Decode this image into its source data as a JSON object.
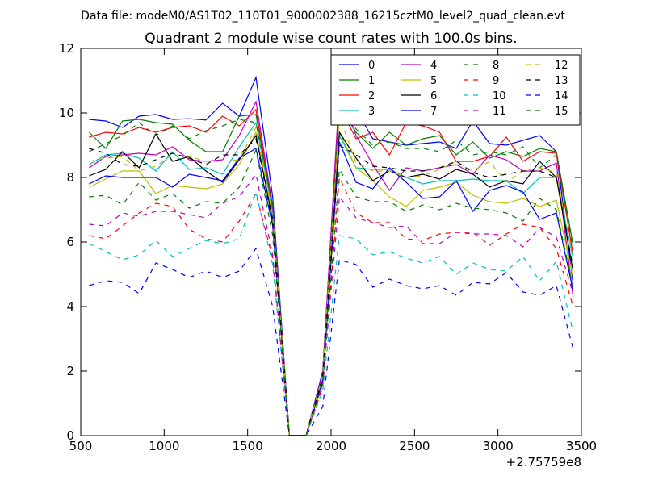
{
  "chart_data": {
    "type": "line",
    "suptitle": "Data file: modeM0/AS1T02_110T01_9000002388_16215cztM0_level2_quad_clean.evt",
    "title": "Quadrant 2 module wise count rates with 100.0s bins.",
    "xlabel": "",
    "ylabel": "",
    "x_offset_label": "+2.75759e8",
    "xlim": [
      500,
      3500
    ],
    "ylim": [
      0,
      12
    ],
    "xticks": [
      500,
      1000,
      1500,
      2000,
      2500,
      3000,
      3500
    ],
    "yticks": [
      0,
      2,
      4,
      6,
      8,
      10,
      12
    ],
    "x": [
      550,
      650,
      750,
      850,
      950,
      1050,
      1150,
      1250,
      1350,
      1450,
      1550,
      1650,
      1750,
      1850,
      1950,
      2050,
      2150,
      2250,
      2350,
      2450,
      2550,
      2650,
      2750,
      2850,
      2950,
      3050,
      3150,
      3250,
      3350,
      3450
    ],
    "legend_position": "top-right",
    "legend_columns": 4,
    "series": [
      {
        "name": "0",
        "color": "#0000ff",
        "style": "solid",
        "values": [
          9.8,
          9.75,
          9.55,
          9.9,
          9.95,
          9.8,
          9.82,
          9.78,
          10.3,
          9.9,
          11.1,
          7.4,
          0.0,
          0.0,
          2.0,
          10.5,
          10.1,
          9.2,
          9.1,
          9.0,
          9.05,
          9.1,
          8.9,
          9.75,
          9.05,
          9.0,
          9.15,
          9.3,
          8.8,
          4.7
        ]
      },
      {
        "name": "1",
        "color": "#008000",
        "style": "solid",
        "values": [
          9.4,
          8.9,
          9.75,
          9.8,
          9.7,
          9.65,
          9.15,
          8.8,
          8.8,
          9.9,
          9.95,
          7.0,
          0.0,
          0.0,
          1.9,
          10.2,
          9.4,
          8.9,
          9.4,
          9.0,
          9.2,
          9.3,
          8.7,
          9.1,
          8.6,
          8.8,
          8.65,
          8.9,
          8.8,
          5.9
        ]
      },
      {
        "name": "2",
        "color": "#ff0000",
        "style": "solid",
        "values": [
          9.25,
          9.4,
          9.35,
          9.55,
          9.4,
          9.55,
          9.6,
          9.4,
          9.9,
          9.6,
          10.1,
          7.0,
          0.0,
          0.0,
          1.85,
          10.2,
          9.2,
          9.4,
          8.7,
          9.7,
          9.6,
          9.4,
          8.5,
          8.5,
          8.65,
          9.25,
          8.5,
          8.8,
          8.75,
          5.6
        ]
      },
      {
        "name": "3",
        "color": "#00bfbf",
        "style": "solid",
        "values": [
          8.4,
          8.7,
          8.75,
          8.6,
          8.2,
          8.8,
          8.25,
          8.3,
          8.1,
          8.95,
          9.7,
          6.9,
          0.0,
          0.0,
          1.8,
          9.3,
          8.3,
          8.25,
          8.25,
          8.0,
          7.8,
          7.9,
          7.9,
          7.95,
          7.9,
          7.9,
          7.5,
          8.0,
          8.0,
          5.5
        ]
      },
      {
        "name": "4",
        "color": "#bf00bf",
        "style": "solid",
        "values": [
          8.3,
          8.65,
          8.7,
          8.75,
          8.7,
          8.95,
          8.55,
          8.5,
          8.55,
          9.3,
          10.35,
          7.1,
          0.0,
          0.0,
          1.95,
          10.7,
          9.3,
          8.4,
          7.6,
          8.3,
          8.2,
          8.3,
          8.4,
          8.1,
          8.7,
          8.55,
          8.2,
          8.2,
          8.45,
          4.3
        ]
      },
      {
        "name": "5",
        "color": "#bfbf00",
        "style": "solid",
        "values": [
          7.7,
          7.95,
          8.2,
          8.2,
          7.5,
          7.75,
          7.7,
          7.65,
          7.8,
          8.4,
          9.4,
          6.6,
          0.0,
          0.0,
          1.75,
          9.4,
          8.3,
          7.9,
          7.4,
          7.1,
          7.6,
          7.7,
          7.85,
          7.45,
          7.25,
          7.2,
          7.35,
          7.1,
          7.3,
          4.9
        ]
      },
      {
        "name": "6",
        "color": "#000000",
        "style": "solid",
        "values": [
          8.05,
          8.25,
          8.8,
          8.3,
          9.35,
          8.5,
          8.65,
          8.2,
          7.85,
          8.55,
          9.3,
          6.7,
          0.0,
          0.0,
          1.7,
          9.4,
          8.6,
          7.9,
          8.2,
          8.0,
          8.1,
          7.95,
          8.25,
          8.1,
          7.7,
          7.9,
          7.8,
          8.5,
          8.0,
          5.1
        ]
      },
      {
        "name": "7",
        "color": "#0000ff",
        "style": "solid",
        "values": [
          7.8,
          8.05,
          8.0,
          8.0,
          8.0,
          7.7,
          8.1,
          8.0,
          7.9,
          8.6,
          8.9,
          6.5,
          0.0,
          0.0,
          1.7,
          9.1,
          7.85,
          7.65,
          8.3,
          7.85,
          7.35,
          7.4,
          7.9,
          6.95,
          7.6,
          7.75,
          7.55,
          6.7,
          6.9,
          4.5
        ]
      },
      {
        "name": "8",
        "color": "#008000",
        "style": "dashed",
        "values": [
          8.8,
          9.05,
          9.3,
          9.7,
          9.3,
          9.6,
          9.2,
          9.45,
          9.6,
          9.8,
          9.7,
          7.2,
          0.0,
          0.0,
          1.9,
          10.2,
          9.5,
          9.0,
          9.1,
          8.9,
          8.9,
          8.8,
          9.15,
          8.7,
          8.8,
          8.7,
          8.95,
          8.3,
          8.7,
          5.8
        ]
      },
      {
        "name": "9",
        "color": "#ff0000",
        "style": "dashed",
        "values": [
          6.2,
          6.1,
          6.5,
          6.9,
          7.2,
          7.1,
          6.4,
          6.1,
          6.0,
          6.65,
          7.5,
          5.5,
          0.0,
          0.0,
          1.5,
          8.0,
          6.9,
          6.6,
          6.6,
          6.1,
          6.05,
          6.25,
          6.3,
          6.3,
          5.9,
          6.25,
          6.55,
          6.45,
          5.8,
          4.0
        ]
      },
      {
        "name": "10",
        "color": "#00bfbf",
        "style": "dashed",
        "values": [
          5.95,
          5.7,
          5.45,
          5.6,
          6.05,
          5.55,
          5.8,
          6.05,
          5.95,
          6.1,
          7.55,
          5.3,
          0.0,
          0.0,
          1.4,
          6.2,
          6.1,
          5.6,
          5.7,
          5.5,
          5.35,
          5.55,
          5.0,
          5.35,
          5.15,
          5.1,
          5.55,
          4.8,
          5.4,
          3.2
        ]
      },
      {
        "name": "11",
        "color": "#bf00bf",
        "style": "dashed",
        "values": [
          6.55,
          6.5,
          6.9,
          6.8,
          6.95,
          6.95,
          6.85,
          6.75,
          7.2,
          7.4,
          8.1,
          5.6,
          0.0,
          0.0,
          1.6,
          7.4,
          6.75,
          6.6,
          6.45,
          6.5,
          5.95,
          5.95,
          6.3,
          6.25,
          6.25,
          6.2,
          5.85,
          6.45,
          6.15,
          4.4
        ]
      },
      {
        "name": "12",
        "color": "#bfbf00",
        "style": "dashed",
        "values": [
          8.5,
          8.6,
          8.65,
          8.2,
          8.35,
          8.7,
          8.65,
          8.5,
          8.5,
          8.55,
          9.55,
          6.8,
          0.0,
          0.0,
          1.85,
          9.9,
          8.45,
          8.2,
          8.2,
          8.0,
          8.05,
          8.25,
          8.5,
          8.2,
          8.5,
          7.85,
          8.2,
          8.3,
          8.15,
          5.4
        ]
      },
      {
        "name": "13",
        "color": "#000000",
        "style": "dashed",
        "values": [
          8.9,
          8.75,
          8.4,
          8.35,
          8.55,
          8.75,
          8.6,
          8.4,
          8.7,
          8.7,
          9.2,
          6.6,
          0.0,
          0.0,
          1.8,
          9.0,
          8.7,
          8.35,
          8.3,
          8.2,
          8.2,
          8.3,
          8.5,
          8.15,
          8.0,
          8.1,
          8.2,
          8.2,
          8.0,
          5.2
        ]
      },
      {
        "name": "14",
        "color": "#0000ff",
        "style": "dashed",
        "values": [
          4.65,
          4.8,
          4.75,
          4.4,
          5.35,
          5.15,
          4.9,
          5.1,
          4.9,
          5.1,
          5.8,
          4.0,
          0.0,
          0.0,
          0.9,
          5.45,
          5.3,
          4.6,
          4.85,
          4.65,
          4.55,
          4.65,
          4.35,
          4.75,
          4.7,
          5.05,
          4.45,
          4.35,
          4.65,
          2.7
        ]
      },
      {
        "name": "15",
        "color": "#008000",
        "style": "dashed",
        "values": [
          7.4,
          7.45,
          7.15,
          7.85,
          7.3,
          7.5,
          7.05,
          7.25,
          7.2,
          7.7,
          8.85,
          6.2,
          0.0,
          0.0,
          1.6,
          8.25,
          7.4,
          7.25,
          7.25,
          6.95,
          7.15,
          7.0,
          7.2,
          7.05,
          7.0,
          6.9,
          6.65,
          7.35,
          7.0,
          4.6
        ]
      }
    ]
  }
}
